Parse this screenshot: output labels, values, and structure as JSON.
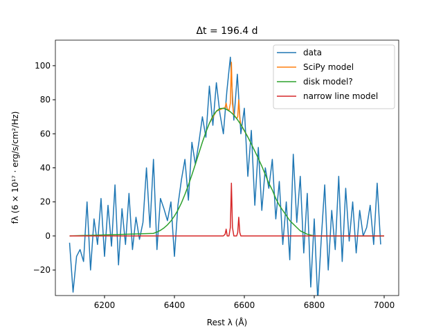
{
  "chart_data": {
    "type": "line",
    "title": "Δt = 196.4 d",
    "x_label": "Rest λ (Å)",
    "y_label": "fλ  (6 × 10¹⁷ · erg/s/cm²/Hz)",
    "xlim": [
      6059.4,
      7041.6
    ],
    "ylim": [
      -35,
      115
    ],
    "xticks": [
      6200,
      6400,
      6600,
      6800,
      7000
    ],
    "yticks": [
      {
        "value": -20,
        "label": "−20"
      },
      0,
      20,
      40,
      60,
      80,
      100
    ],
    "legend": "upper right",
    "series": [
      {
        "name": "data",
        "color": "#1f77b4",
        "x": [
          6100,
          6110,
          6120,
          6130,
          6140,
          6150,
          6160,
          6170,
          6180,
          6190,
          6200,
          6210,
          6220,
          6230,
          6240,
          6250,
          6260,
          6270,
          6280,
          6290,
          6300,
          6310,
          6320,
          6330,
          6340,
          6350,
          6360,
          6370,
          6380,
          6390,
          6400,
          6410,
          6420,
          6430,
          6440,
          6450,
          6460,
          6470,
          6480,
          6490,
          6500,
          6510,
          6520,
          6530,
          6540,
          6550,
          6560,
          6570,
          6580,
          6590,
          6600,
          6610,
          6620,
          6630,
          6640,
          6650,
          6660,
          6670,
          6680,
          6690,
          6700,
          6710,
          6720,
          6730,
          6740,
          6750,
          6760,
          6770,
          6780,
          6790,
          6800,
          6810,
          6820,
          6830,
          6840,
          6850,
          6860,
          6870,
          6880,
          6890,
          6900,
          6910,
          6920,
          6930,
          6940,
          6950,
          6960,
          6970,
          6980,
          6990
        ],
        "values": [
          -4,
          -33,
          -12,
          -8,
          -15,
          20,
          -20,
          10,
          -5,
          22,
          -12,
          18,
          -6,
          30,
          -17,
          16,
          -5,
          25,
          -8,
          11,
          -2,
          8,
          40,
          5,
          45,
          -8,
          22,
          16,
          9,
          20,
          -12,
          18,
          33,
          45,
          21,
          55,
          42,
          55,
          70,
          58,
          88,
          65,
          90,
          72,
          60,
          85,
          105,
          68,
          95,
          60,
          75,
          35,
          62,
          18,
          52,
          15,
          40,
          28,
          45,
          10,
          32,
          -5,
          20,
          -14,
          48,
          8,
          35,
          -10,
          25,
          -30,
          10,
          -38,
          -2,
          30,
          -20,
          15,
          -8,
          35,
          -15,
          28,
          -3,
          20,
          -10,
          15,
          0,
          5,
          18,
          -5,
          31,
          -5
        ]
      },
      {
        "name": "SciPy model",
        "color": "#ff7f0e",
        "x": [
          6500,
          6520,
          6540,
          6545,
          6548,
          6551,
          6556,
          6560,
          6563,
          6566,
          6570,
          6578,
          6581,
          6584,
          6587,
          6590,
          6610
        ],
        "values": [
          66.2,
          73.3,
          75,
          75.5,
          78,
          74.7,
          73.5,
          78,
          102,
          77.5,
          71,
          69,
          70,
          80,
          69,
          65.4,
          58.1
        ]
      },
      {
        "name": "disk model?",
        "color": "#2ca02c",
        "x": [
          6100,
          6340,
          6350,
          6360,
          6370,
          6380,
          6390,
          6400,
          6410,
          6420,
          6430,
          6440,
          6450,
          6460,
          6470,
          6480,
          6490,
          6500,
          6510,
          6520,
          6530,
          6540,
          6550,
          6560,
          6570,
          6580,
          6590,
          6600,
          6610,
          6620,
          6630,
          6640,
          6650,
          6660,
          6670,
          6680,
          6690,
          6700,
          6710,
          6720,
          6730,
          6740,
          6750,
          6760,
          6770,
          6780,
          6790,
          6800,
          7000
        ],
        "values": [
          0,
          1.5,
          2.3,
          3.3,
          4.7,
          6.5,
          8.8,
          11.7,
          15.2,
          19.4,
          24.4,
          29.9,
          35.9,
          42.2,
          48.7,
          55.1,
          61,
          66.2,
          70.4,
          73.3,
          74.8,
          75,
          74.2,
          72.9,
          71,
          68.4,
          65.4,
          61.9,
          58.1,
          54,
          49.8,
          45.5,
          41,
          36,
          31,
          27,
          22,
          18,
          15,
          12,
          9,
          7,
          5,
          3,
          2,
          1,
          0.5,
          0,
          0
        ]
      },
      {
        "name": "narrow line model",
        "color": "#d62728",
        "x": [
          6100,
          6540,
          6545,
          6548,
          6551,
          6556,
          6560,
          6563,
          6566,
          6570,
          6578,
          6581,
          6584,
          6587,
          6590,
          7000
        ],
        "values": [
          0,
          0,
          1,
          4,
          0,
          0,
          5,
          31,
          5,
          0,
          0,
          2,
          11,
          2,
          0,
          0
        ]
      }
    ]
  }
}
